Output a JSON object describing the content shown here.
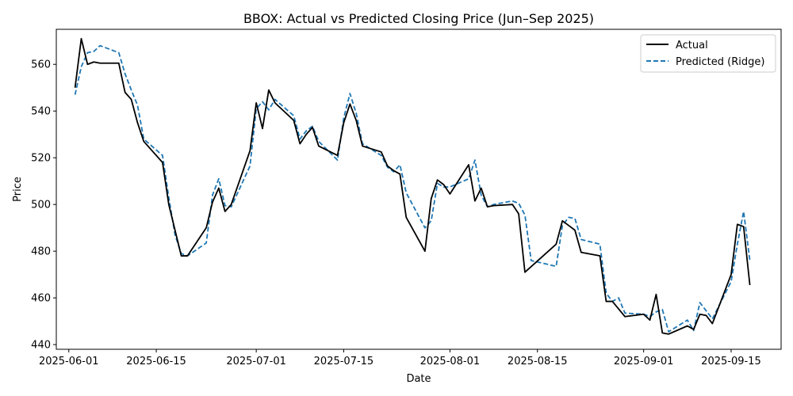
{
  "chart_data": {
    "type": "line",
    "title": "BBOX: Actual vs Predicted Closing Price (Jun–Sep 2025)",
    "xlabel": "Date",
    "ylabel": "Price",
    "xlim": [
      "2025-05-30",
      "2025-09-23"
    ],
    "ylim": [
      438,
      575
    ],
    "xticks": [
      "2025-06-01",
      "2025-06-15",
      "2025-07-01",
      "2025-07-15",
      "2025-08-01",
      "2025-08-15",
      "2025-09-01",
      "2025-09-15"
    ],
    "yticks": [
      440,
      460,
      480,
      500,
      520,
      540,
      560
    ],
    "grid": false,
    "legend_position": "top-right",
    "series": [
      {
        "name": "Actual",
        "color": "#000000",
        "style": "solid",
        "points": [
          [
            "2025-06-02",
            550
          ],
          [
            "2025-06-03",
            571
          ],
          [
            "2025-06-04",
            560
          ],
          [
            "2025-06-05",
            561
          ],
          [
            "2025-06-06",
            560.5
          ],
          [
            "2025-06-09",
            560.5
          ],
          [
            "2025-06-10",
            548
          ],
          [
            "2025-06-11",
            545
          ],
          [
            "2025-06-12",
            535
          ],
          [
            "2025-06-13",
            527
          ],
          [
            "2025-06-16",
            518
          ],
          [
            "2025-06-17",
            500
          ],
          [
            "2025-06-18",
            489
          ],
          [
            "2025-06-19",
            478
          ],
          [
            "2025-06-20",
            478
          ],
          [
            "2025-06-23",
            490
          ],
          [
            "2025-06-24",
            501
          ],
          [
            "2025-06-25",
            507
          ],
          [
            "2025-06-26",
            497
          ],
          [
            "2025-06-27",
            500
          ],
          [
            "2025-06-30",
            523
          ],
          [
            "2025-07-01",
            543.5
          ],
          [
            "2025-07-02",
            532.5
          ],
          [
            "2025-07-03",
            549
          ],
          [
            "2025-07-04",
            543.5
          ],
          [
            "2025-07-07",
            536
          ],
          [
            "2025-07-08",
            526
          ],
          [
            "2025-07-09",
            530
          ],
          [
            "2025-07-10",
            533
          ],
          [
            "2025-07-11",
            525
          ],
          [
            "2025-07-14",
            521
          ],
          [
            "2025-07-15",
            535
          ],
          [
            "2025-07-16",
            543
          ],
          [
            "2025-07-17",
            536
          ],
          [
            "2025-07-18",
            525
          ],
          [
            "2025-07-21",
            522.5
          ],
          [
            "2025-07-22",
            516.5
          ],
          [
            "2025-07-23",
            514.5
          ],
          [
            "2025-07-24",
            513
          ],
          [
            "2025-07-25",
            494.5
          ],
          [
            "2025-07-28",
            480
          ],
          [
            "2025-07-29",
            502.5
          ],
          [
            "2025-07-30",
            510.5
          ],
          [
            "2025-07-31",
            508.5
          ],
          [
            "2025-08-01",
            504.5
          ],
          [
            "2025-08-04",
            517
          ],
          [
            "2025-08-05",
            501.5
          ],
          [
            "2025-08-06",
            507
          ],
          [
            "2025-08-07",
            499
          ],
          [
            "2025-08-08",
            499.5
          ],
          [
            "2025-08-11",
            500
          ],
          [
            "2025-08-12",
            496
          ],
          [
            "2025-08-13",
            471
          ],
          [
            "2025-08-18",
            483
          ],
          [
            "2025-08-19",
            493
          ],
          [
            "2025-08-20",
            491
          ],
          [
            "2025-08-21",
            489
          ],
          [
            "2025-08-22",
            479.5
          ],
          [
            "2025-08-25",
            478
          ],
          [
            "2025-08-26",
            458.5
          ],
          [
            "2025-08-27",
            458.5
          ],
          [
            "2025-08-29",
            452
          ],
          [
            "2025-09-01",
            453
          ],
          [
            "2025-09-02",
            450.5
          ],
          [
            "2025-09-03",
            461.5
          ],
          [
            "2025-09-04",
            445
          ],
          [
            "2025-09-05",
            444.5
          ],
          [
            "2025-09-08",
            448
          ],
          [
            "2025-09-09",
            446.5
          ],
          [
            "2025-09-10",
            453
          ],
          [
            "2025-09-11",
            452.5
          ],
          [
            "2025-09-12",
            449
          ],
          [
            "2025-09-15",
            470
          ],
          [
            "2025-09-16",
            491.5
          ],
          [
            "2025-09-17",
            490.5
          ],
          [
            "2025-09-18",
            465.5
          ]
        ]
      },
      {
        "name": "Predicted (Ridge)",
        "color": "#1f77b4",
        "style": "dashed",
        "points": [
          [
            "2025-06-02",
            547
          ],
          [
            "2025-06-03",
            559
          ],
          [
            "2025-06-04",
            565
          ],
          [
            "2025-06-05",
            565.5
          ],
          [
            "2025-06-06",
            568
          ],
          [
            "2025-06-09",
            565
          ],
          [
            "2025-06-10",
            556
          ],
          [
            "2025-06-11",
            549
          ],
          [
            "2025-06-12",
            542.5
          ],
          [
            "2025-06-13",
            528
          ],
          [
            "2025-06-16",
            521
          ],
          [
            "2025-06-17",
            503
          ],
          [
            "2025-06-18",
            487
          ],
          [
            "2025-06-19",
            479
          ],
          [
            "2025-06-20",
            478
          ],
          [
            "2025-06-23",
            483.5
          ],
          [
            "2025-06-24",
            504
          ],
          [
            "2025-06-25",
            511
          ],
          [
            "2025-06-26",
            499.5
          ],
          [
            "2025-06-27",
            499
          ],
          [
            "2025-06-30",
            516.5
          ],
          [
            "2025-07-01",
            541
          ],
          [
            "2025-07-02",
            544
          ],
          [
            "2025-07-03",
            540.5
          ],
          [
            "2025-07-04",
            545
          ],
          [
            "2025-07-07",
            538
          ],
          [
            "2025-07-08",
            528
          ],
          [
            "2025-07-09",
            531.5
          ],
          [
            "2025-07-10",
            533.5
          ],
          [
            "2025-07-11",
            527
          ],
          [
            "2025-07-14",
            519
          ],
          [
            "2025-07-15",
            537
          ],
          [
            "2025-07-16",
            547.5
          ],
          [
            "2025-07-17",
            539
          ],
          [
            "2025-07-18",
            526
          ],
          [
            "2025-07-21",
            521
          ],
          [
            "2025-07-22",
            516
          ],
          [
            "2025-07-23",
            514
          ],
          [
            "2025-07-24",
            517
          ],
          [
            "2025-07-25",
            505
          ],
          [
            "2025-07-28",
            490
          ],
          [
            "2025-07-29",
            493
          ],
          [
            "2025-07-30",
            509
          ],
          [
            "2025-07-31",
            507.5
          ],
          [
            "2025-08-01",
            507.5
          ],
          [
            "2025-08-04",
            511
          ],
          [
            "2025-08-05",
            519
          ],
          [
            "2025-08-06",
            504
          ],
          [
            "2025-08-07",
            499
          ],
          [
            "2025-08-08",
            500
          ],
          [
            "2025-08-11",
            501.5
          ],
          [
            "2025-08-12",
            500.5
          ],
          [
            "2025-08-13",
            495.5
          ],
          [
            "2025-08-14",
            476
          ],
          [
            "2025-08-18",
            473.5
          ],
          [
            "2025-08-19",
            491
          ],
          [
            "2025-08-20",
            494.5
          ],
          [
            "2025-08-21",
            494
          ],
          [
            "2025-08-22",
            485
          ],
          [
            "2025-08-25",
            483
          ],
          [
            "2025-08-26",
            462
          ],
          [
            "2025-08-27",
            458.5
          ],
          [
            "2025-08-28",
            460
          ],
          [
            "2025-08-29",
            453.5
          ],
          [
            "2025-09-01",
            453
          ],
          [
            "2025-09-02",
            452
          ],
          [
            "2025-09-03",
            454
          ],
          [
            "2025-09-04",
            455
          ],
          [
            "2025-09-05",
            445.5
          ],
          [
            "2025-09-08",
            450.5
          ],
          [
            "2025-09-09",
            446
          ],
          [
            "2025-09-10",
            458
          ],
          [
            "2025-09-11",
            454.5
          ],
          [
            "2025-09-12",
            451
          ],
          [
            "2025-09-15",
            467
          ],
          [
            "2025-09-16",
            483
          ],
          [
            "2025-09-17",
            497
          ],
          [
            "2025-09-18",
            476
          ]
        ]
      }
    ]
  }
}
